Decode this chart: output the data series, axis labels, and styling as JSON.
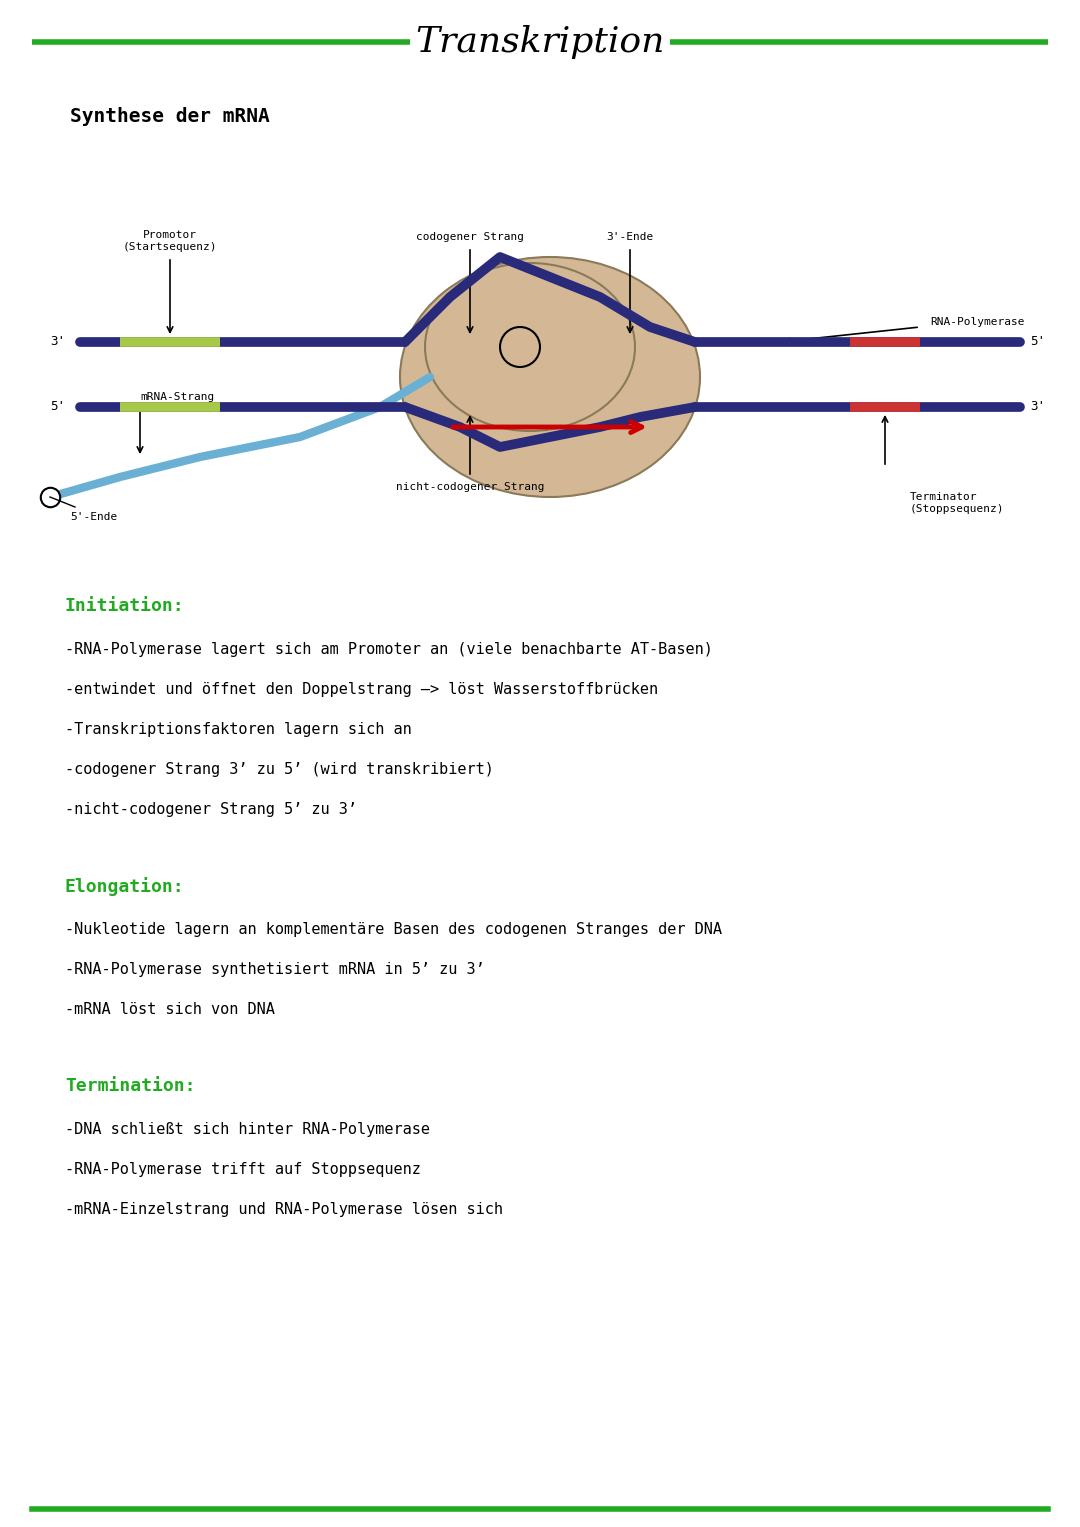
{
  "title": "Transkription",
  "subtitle": "Synthese der mRNA",
  "bg_color": "#ffffff",
  "green_line_color": "#22aa22",
  "title_font": "cursive",
  "initiation_header": "Initiation:",
  "initiation_lines": [
    "-RNA-Polymerase lagert sich am Promoter an (viele benachbarte AT-Basen)",
    "-entwindet und öffnet den Doppelstrang —> löst Wasserstoffbrücken",
    "-Transkriptionsfaktoren lagern sich an",
    "-codogener Strang 3’ zu 5’ (wird transkribiert)",
    "-nicht-codogener Strang 5’ zu 3’"
  ],
  "elongation_header": "Elongation:",
  "elongation_lines": [
    "-Nukleotide lagern an komplementäre Basen des codogenen Stranges der DNA",
    "-RNA-Polymerase synthetisiert mRNA in 5’ zu 3’",
    "-mRNA löst sich von DNA"
  ],
  "termination_header": "Termination:",
  "termination_lines": [
    "-DNA schließt sich hinter RNA-Polymerase",
    "-RNA-Polymerase trifft auf Stoppsequenz",
    "-mRNA-Einzelstrang und RNA-Polymerase lösen sich"
  ],
  "header_color": "#22aa22",
  "text_color": "#000000",
  "dna_color": "#2a2a7a",
  "mrna_color": "#6ab0d4",
  "promotor_color": "#a8c84a",
  "terminator_color": "#cc3333",
  "polymerase_color": "#d4b896",
  "red_arrow_color": "#cc0000"
}
